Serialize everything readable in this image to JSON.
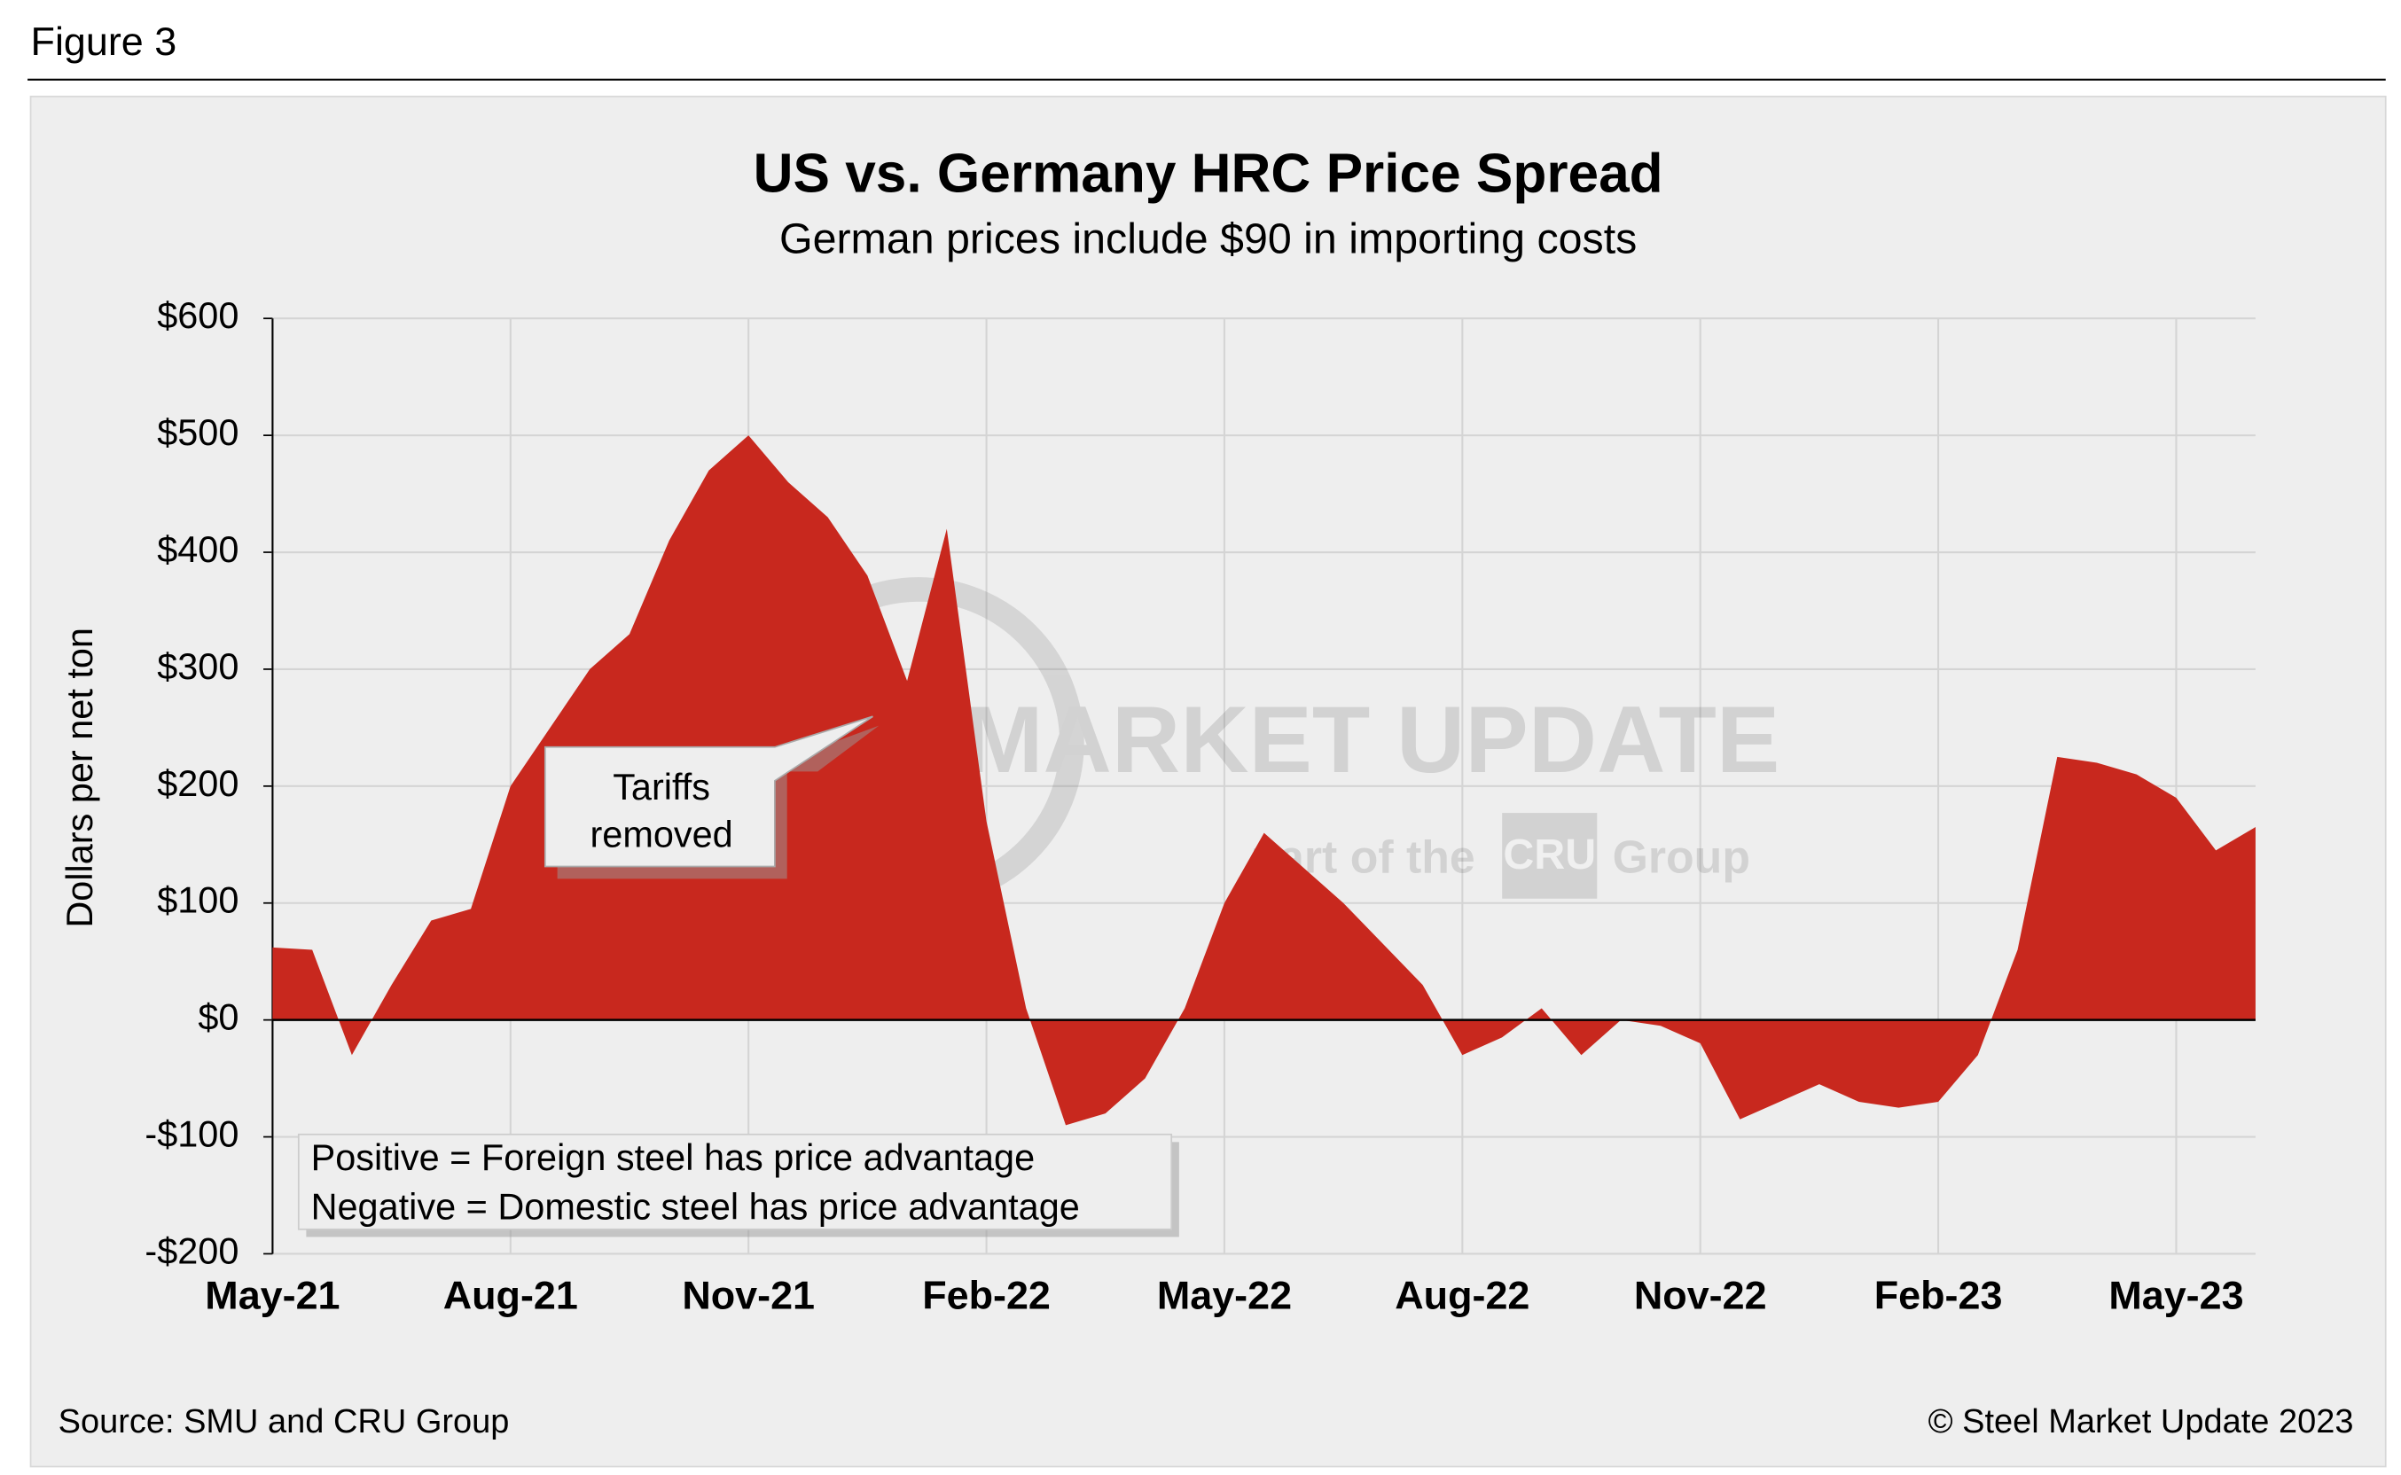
{
  "figure_label": "Figure 3",
  "chart_data": {
    "type": "area",
    "title": "US vs. Germany HRC Price Spread",
    "subtitle": "German prices include $90 in importing costs",
    "y_label": "Dollars per net ton",
    "categories": [
      "May-21",
      null,
      null,
      null,
      null,
      null,
      "Aug-21",
      null,
      null,
      null,
      null,
      null,
      "Nov-21",
      null,
      null,
      null,
      null,
      null,
      "Feb-22",
      null,
      null,
      null,
      null,
      null,
      "May-22",
      null,
      null,
      null,
      null,
      null,
      "Aug-22",
      null,
      null,
      null,
      null,
      null,
      "Nov-22",
      null,
      null,
      null,
      null,
      null,
      "Feb-23",
      null,
      null,
      null,
      null,
      null,
      "May-23",
      null,
      null
    ],
    "series": [
      {
        "name": "US vs. Germany HRC price spread",
        "color": "#c8281e",
        "values": [
          62,
          60,
          -30,
          30,
          85,
          95,
          200,
          250,
          300,
          330,
          410,
          470,
          500,
          460,
          430,
          380,
          290,
          420,
          170,
          10,
          -90,
          -80,
          -50,
          10,
          100,
          160,
          130,
          100,
          65,
          30,
          -30,
          -15,
          10,
          -30,
          0,
          -5,
          -20,
          -85,
          -70,
          -55,
          -70,
          -75,
          -70,
          -30,
          60,
          225,
          220,
          210,
          190,
          145,
          165
        ]
      }
    ],
    "ylim": [
      -200,
      600
    ],
    "yticks": [
      {
        "value": -200,
        "label": "-$200"
      },
      {
        "value": -100,
        "label": "-$100"
      },
      {
        "value": 0,
        "label": "$0"
      },
      {
        "value": 100,
        "label": "$100"
      },
      {
        "value": 200,
        "label": "$200"
      },
      {
        "value": 300,
        "label": "$300"
      },
      {
        "value": 400,
        "label": "$400"
      },
      {
        "value": 500,
        "label": "$500"
      },
      {
        "value": 600,
        "label": "$600"
      }
    ],
    "grid": true,
    "annotation": "Tariffs removed",
    "notes": [
      "Positive = Foreign steel has price advantage",
      "Negative = Domestic steel has price advantage"
    ],
    "watermark": [
      "STEEL MARKET UPDATE",
      "part of the",
      "CRU",
      "Group"
    ],
    "source": "Source: SMU and CRU Group",
    "copyright": "© Steel Market Update 2023"
  }
}
